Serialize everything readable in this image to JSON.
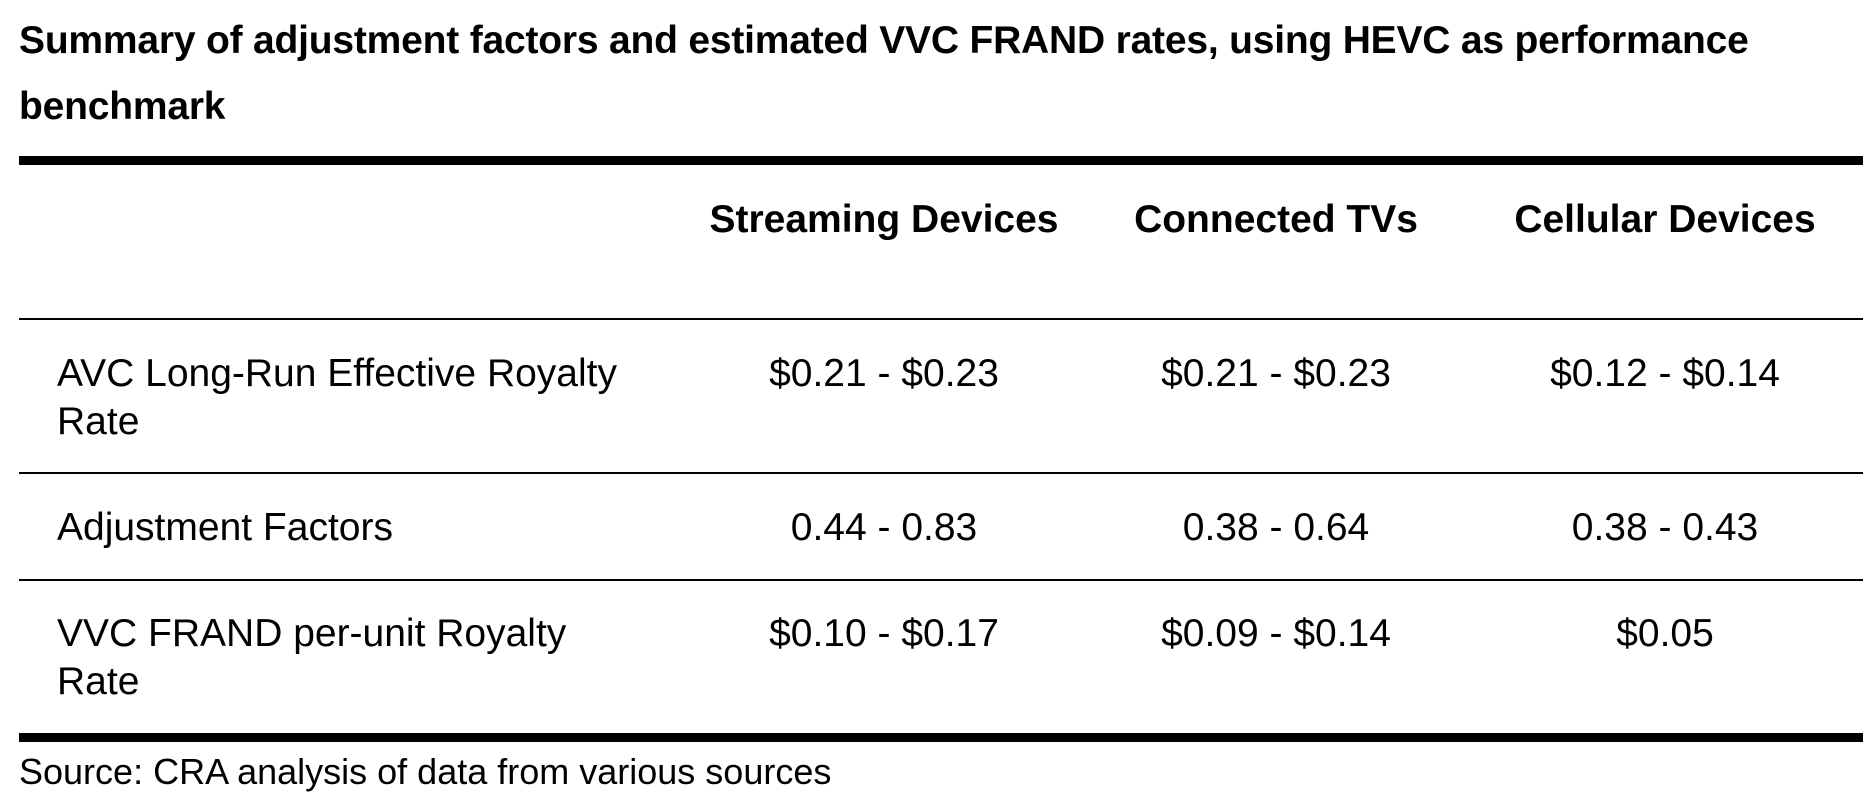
{
  "title": "Summary of adjustment factors and estimated VVC FRAND rates, using HEVC as performance benchmark",
  "table": {
    "headers": [
      "",
      "Streaming Devices",
      "Connected TVs",
      "Cellular Devices"
    ],
    "rows": [
      {
        "label": "AVC Long-Run Effective Royalty Rate",
        "values": [
          "$0.21 - $0.23",
          "$0.21 - $0.23",
          "$0.12 - $0.14"
        ]
      },
      {
        "label": "Adjustment Factors",
        "values": [
          "0.44 - 0.83",
          "0.38 - 0.64",
          "0.38 - 0.43"
        ]
      },
      {
        "label": "VVC FRAND per-unit Royalty Rate",
        "values": [
          "$0.10 - $0.17",
          "$0.09 - $0.14",
          "$0.05"
        ]
      }
    ]
  },
  "source": "Source: CRA analysis of data from various sources"
}
